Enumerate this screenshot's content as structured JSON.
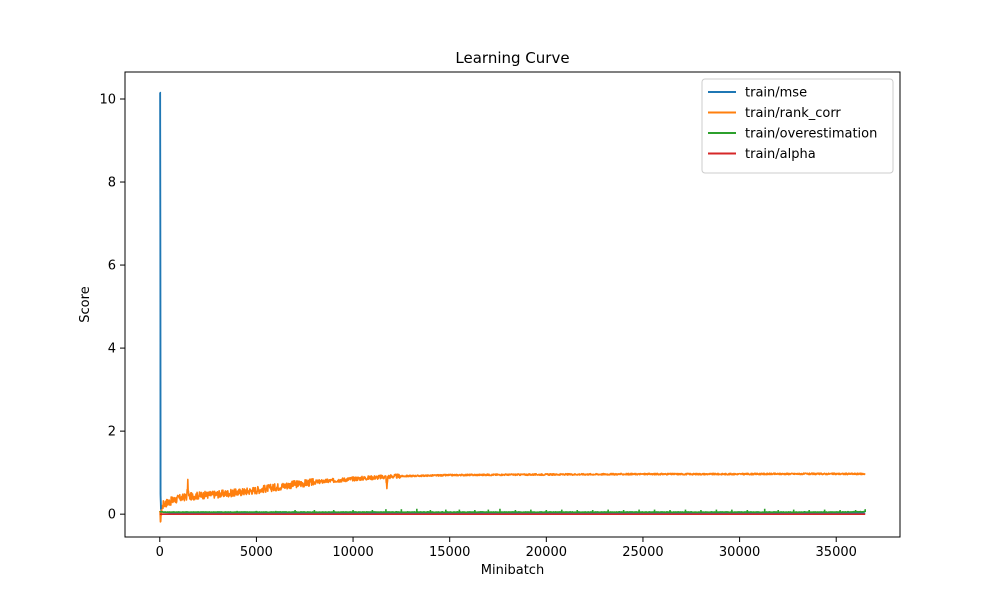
{
  "chart_data": {
    "type": "line",
    "title": "Learning Curve",
    "xlabel": "Minibatch",
    "ylabel": "Score",
    "xlim": [
      -1800,
      38300
    ],
    "ylim": [
      -0.55,
      10.65
    ],
    "xticks": [
      0,
      5000,
      10000,
      15000,
      20000,
      25000,
      30000,
      35000
    ],
    "yticks": [
      0,
      2,
      4,
      6,
      8,
      10
    ],
    "grid": false,
    "legend_position": "top-right",
    "series": [
      {
        "name": "train/mse",
        "color": "#1f77b4",
        "x": [
          0,
          20,
          40,
          60,
          80,
          100,
          150,
          200,
          300,
          500,
          1000,
          2000,
          5000,
          10000,
          20000,
          30000,
          36500
        ],
        "y": [
          10.15,
          10.15,
          0.5,
          0.12,
          0.08,
          0.06,
          0.05,
          0.045,
          0.04,
          0.035,
          0.03,
          0.028,
          0.025,
          0.022,
          0.02,
          0.02,
          0.02
        ]
      },
      {
        "name": "train/rank_corr",
        "color": "#ff7f0e",
        "x": [
          0,
          50,
          100,
          200,
          500,
          1000,
          1400,
          1450,
          1500,
          2000,
          3000,
          4000,
          5000,
          6000,
          7000,
          8000,
          9000,
          10000,
          11000,
          11700,
          11750,
          11800,
          12000,
          13000,
          14000,
          15000,
          17500,
          20000,
          22500,
          25000,
          27500,
          30000,
          32500,
          35000,
          36500
        ],
        "y": [
          0.0,
          -0.15,
          0.15,
          0.25,
          0.3,
          0.38,
          0.42,
          0.75,
          0.42,
          0.45,
          0.48,
          0.52,
          0.58,
          0.65,
          0.72,
          0.77,
          0.81,
          0.85,
          0.88,
          0.9,
          0.62,
          0.9,
          0.91,
          0.92,
          0.93,
          0.94,
          0.95,
          0.955,
          0.96,
          0.965,
          0.965,
          0.965,
          0.97,
          0.97,
          0.97
        ]
      },
      {
        "name": "train/overestimation",
        "color": "#2ca02c",
        "x": [
          0,
          100,
          200,
          500,
          1000,
          5000,
          10000,
          15000,
          20000,
          25000,
          30000,
          35000,
          36500
        ],
        "y": [
          0.05,
          0.06,
          0.05,
          0.05,
          0.05,
          0.05,
          0.05,
          0.05,
          0.05,
          0.05,
          0.05,
          0.05,
          0.06
        ],
        "spike_x": [
          2000,
          3000,
          4000,
          5000,
          6000,
          7000,
          8000,
          9000,
          10000,
          11000,
          11700,
          12500,
          13300,
          14000,
          14800,
          15500,
          16300,
          17000,
          17600,
          18400,
          19200,
          20000,
          20800,
          21600,
          22400,
          23200,
          24000,
          24800,
          25600,
          26400,
          27200,
          28000,
          28800,
          29600,
          30400,
          31300,
          32000,
          32800,
          33600,
          34400,
          35200,
          36000,
          36500
        ],
        "spike_y": [
          0.07,
          0.07,
          0.08,
          0.08,
          0.08,
          0.1,
          0.1,
          0.1,
          0.1,
          0.1,
          0.12,
          0.12,
          0.13,
          0.1,
          0.11,
          0.11,
          0.1,
          0.11,
          0.13,
          0.1,
          0.11,
          0.1,
          0.11,
          0.1,
          0.1,
          0.11,
          0.1,
          0.11,
          0.11,
          0.1,
          0.11,
          0.1,
          0.11,
          0.11,
          0.1,
          0.13,
          0.1,
          0.11,
          0.1,
          0.11,
          0.1,
          0.1,
          0.12
        ]
      },
      {
        "name": "train/alpha",
        "color": "#d62728",
        "x": [
          0,
          36500
        ],
        "y": [
          0.0,
          0.0
        ]
      }
    ]
  }
}
